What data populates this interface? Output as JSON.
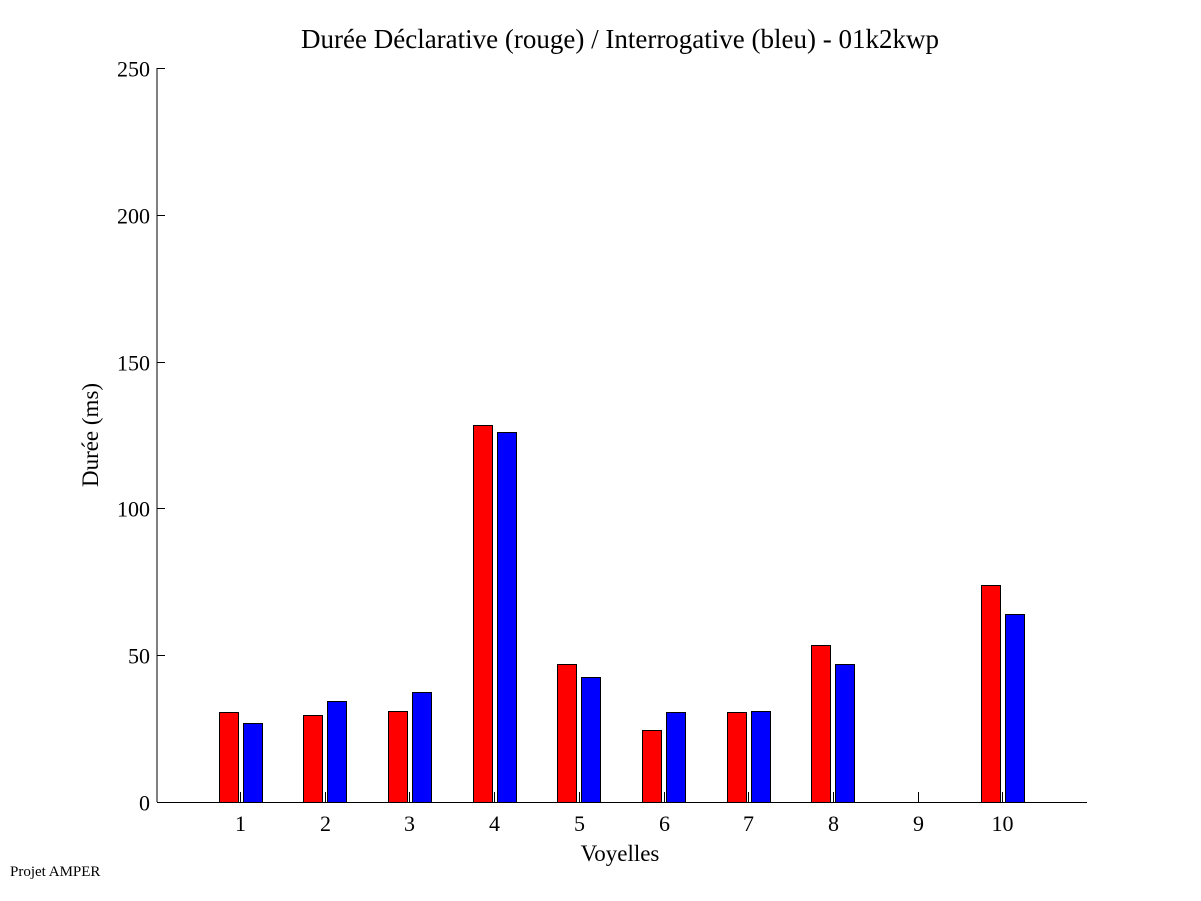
{
  "chart_data": {
    "type": "bar",
    "title": "Durée Déclarative (rouge) / Interrogative (bleu) - 01k2kwp",
    "xlabel": "Voyelles",
    "ylabel": "Durée (ms)",
    "categories": [
      "1",
      "2",
      "3",
      "4",
      "5",
      "6",
      "7",
      "8",
      "9",
      "10"
    ],
    "ylim": [
      0,
      250
    ],
    "yticks": [
      0,
      50,
      100,
      150,
      200,
      250
    ],
    "grid": false,
    "legend": "none",
    "series": [
      {
        "color": "#ff0000",
        "values": [
          30.5,
          29.5,
          31,
          128.5,
          47,
          24.5,
          30.5,
          53.5,
          null,
          74
        ]
      },
      {
        "color": "#0000ff",
        "values": [
          27,
          34.5,
          37.5,
          126,
          42.5,
          30.5,
          31,
          47,
          null,
          64
        ]
      }
    ]
  },
  "footer": "Projet AMPER"
}
